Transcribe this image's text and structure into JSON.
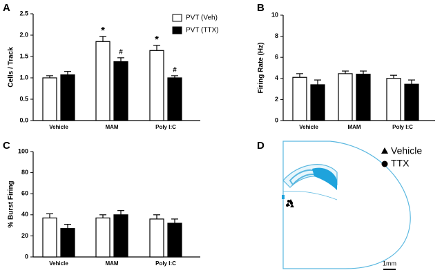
{
  "chart_data": [
    {
      "type": "bar",
      "panel_label": "A",
      "y_label": "Cells / Track",
      "categories": [
        "Vehicle",
        "MAM",
        "Poly I:C"
      ],
      "series": [
        {
          "name": "PVT (Veh)",
          "color": "#ffffff",
          "values": [
            1.0,
            1.85,
            1.64
          ],
          "errors": [
            0.05,
            0.12,
            0.12
          ],
          "markers": [
            null,
            "*",
            "*"
          ]
        },
        {
          "name": "PVT (TTX)",
          "color": "#000000",
          "values": [
            1.07,
            1.38,
            1.0
          ],
          "errors": [
            0.08,
            0.09,
            0.05
          ],
          "markers": [
            null,
            "#",
            "#"
          ]
        }
      ],
      "ylim": [
        0,
        2.5
      ],
      "yticks": [
        {
          "value": 0,
          "label": "0.0"
        },
        0.5,
        {
          "value": 1,
          "label": "1.0"
        },
        1.5,
        {
          "value": 2,
          "label": "2.0"
        },
        2.5
      ],
      "legend": "top-right"
    },
    {
      "type": "bar",
      "panel_label": "B",
      "y_label": "Firing  Rate  (Hz)",
      "categories": [
        "Vehicle",
        "MAM",
        "Poly I:C"
      ],
      "series": [
        {
          "color": "#ffffff",
          "values": [
            4.1,
            4.45,
            4.0
          ],
          "errors": [
            0.35,
            0.25,
            0.3
          ]
        },
        {
          "color": "#000000",
          "values": [
            3.4,
            4.4,
            3.45
          ],
          "errors": [
            0.45,
            0.3,
            0.4
          ]
        }
      ],
      "ylim": [
        0,
        10
      ],
      "yticks": [
        0,
        2,
        4,
        6,
        8,
        10
      ]
    },
    {
      "type": "bar",
      "panel_label": "C",
      "y_label": "% Burst  Firing",
      "categories": [
        "Vehicle",
        "MAM",
        "Poly I:C"
      ],
      "series": [
        {
          "color": "#ffffff",
          "values": [
            37,
            37,
            36
          ],
          "errors": [
            4,
            3,
            4
          ]
        },
        {
          "color": "#000000",
          "values": [
            27,
            40,
            32
          ],
          "errors": [
            4,
            4,
            4
          ]
        }
      ],
      "ylim": [
        0,
        100
      ],
      "yticks": [
        0,
        20,
        40,
        60,
        80,
        100
      ]
    }
  ],
  "diagram": {
    "panel_label": "D",
    "legend": [
      "Vehicle",
      "TTX"
    ],
    "scale_label": "1mm"
  }
}
